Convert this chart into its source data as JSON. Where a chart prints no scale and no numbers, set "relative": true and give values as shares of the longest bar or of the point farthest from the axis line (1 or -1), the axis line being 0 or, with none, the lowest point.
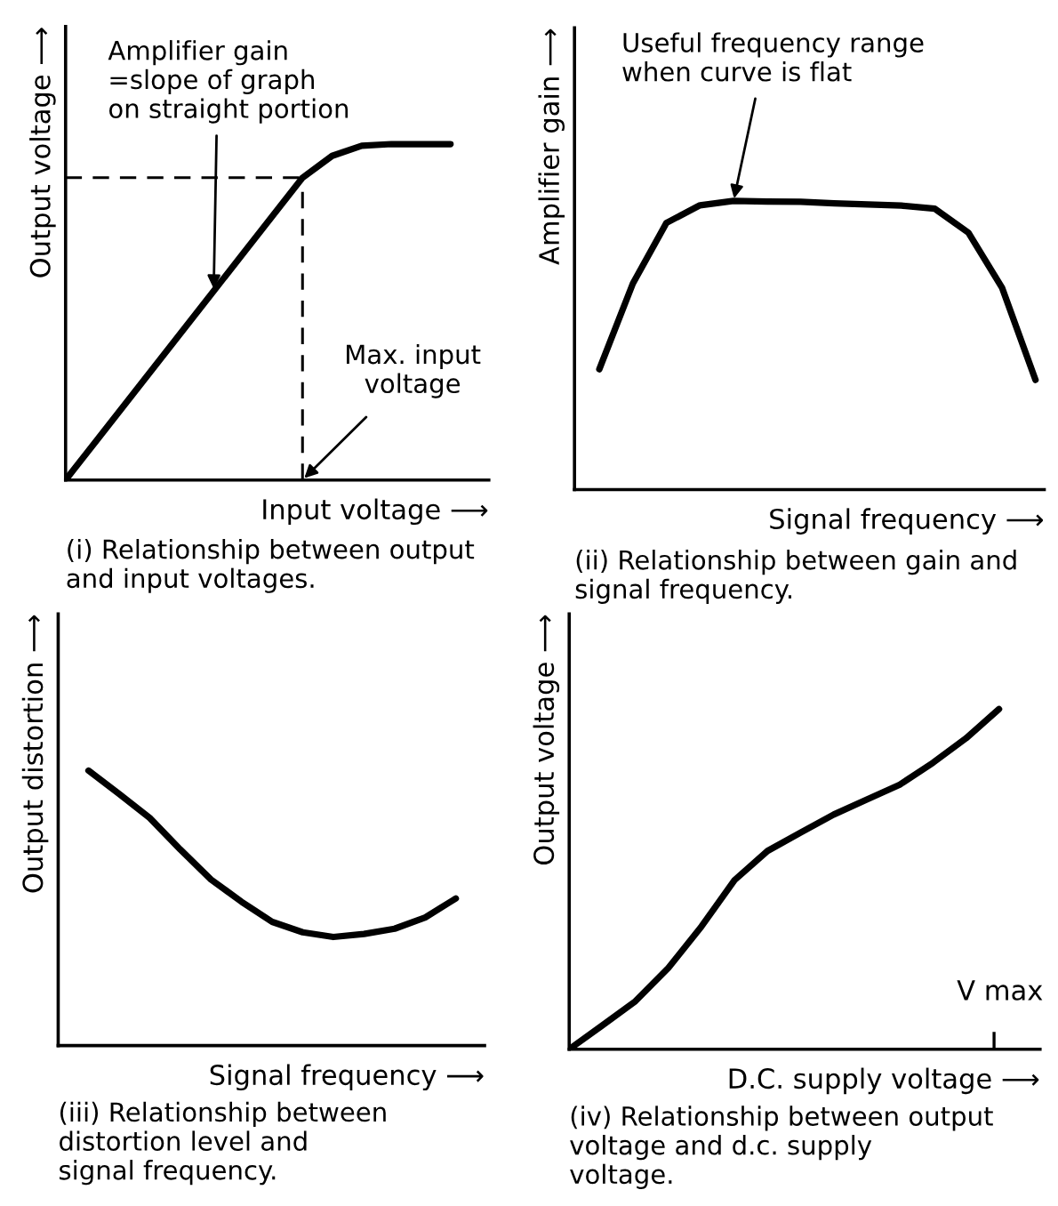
{
  "chart_data": [
    {
      "type": "line",
      "relative": true,
      "title": "(i) Relationship between output\nand input voltages.",
      "xlabel": "Input voltage ⟶",
      "ylabel": "Output voltage ⟶",
      "marker": "none",
      "line_style": "solid",
      "categories": [
        null,
        null,
        null,
        null,
        null,
        null,
        null,
        null,
        null,
        null,
        null,
        null,
        null,
        null
      ],
      "series": [
        {
          "color": "#000000",
          "values": [
            0,
            0.1125,
            0.225,
            0.3375,
            0.45,
            0.5625,
            0.675,
            0.7875,
            0.9,
            0.965,
            0.995,
            1,
            1,
            1
          ]
        }
      ],
      "ref_lines": [
        {
          "axis": "y",
          "value": 0.9,
          "line_style": "dashed",
          "color": "#000000"
        }
      ],
      "annotations": [
        "Amplifier gain\n=slope of graph\non straight portion",
        "Max. input\nvoltage"
      ]
    },
    {
      "type": "line",
      "relative": true,
      "title": "(ii) Relationship between gain and\nsignal frequency.",
      "xlabel": "Signal frequency ⟶",
      "ylabel": "Amplifier gain ⟶",
      "marker": "none",
      "line_style": "solid",
      "categories": [
        null,
        null,
        null,
        null,
        null,
        null,
        null,
        null,
        null,
        null,
        null,
        null,
        null,
        null
      ],
      "series": [
        {
          "color": "#000000",
          "values": [
            0.417,
            0.714,
            0.924,
            0.985,
            1,
            0.998,
            0.997,
            0.992,
            0.988,
            0.984,
            0.973,
            0.89,
            0.7,
            0.38
          ]
        }
      ],
      "annotations": [
        "Useful frequency range\nwhen curve is flat"
      ]
    },
    {
      "type": "line",
      "relative": true,
      "title": "(iii) Relationship between\ndistortion level and\nsignal frequency.",
      "xlabel": "Signal frequency ⟶",
      "ylabel": "Output distortion ⟶",
      "marker": "none",
      "line_style": "solid",
      "categories": [
        null,
        null,
        null,
        null,
        null,
        null,
        null,
        null,
        null,
        null,
        null,
        null,
        null
      ],
      "series": [
        {
          "color": "#000000",
          "values": [
            1,
            0.915,
            0.828,
            0.713,
            0.604,
            0.523,
            0.45,
            0.412,
            0.395,
            0.406,
            0.425,
            0.466,
            0.535
          ]
        }
      ]
    },
    {
      "type": "line",
      "relative": true,
      "title": "(iv) Relationship between output\nvoltage and d.c. supply\nvoltage.",
      "xlabel": "D.C. supply voltage ⟶",
      "ylabel": "Output voltage ⟶",
      "marker": "none",
      "line_style": "solid",
      "categories": [
        null,
        null,
        null,
        null,
        null,
        null,
        null,
        null,
        null,
        null,
        null,
        null,
        null,
        null
      ],
      "series": [
        {
          "color": "#000000",
          "values": [
            0,
            0.07,
            0.141,
            0.239,
            0.361,
            0.497,
            0.583,
            0.637,
            0.69,
            0.734,
            0.778,
            0.842,
            0.914,
            1
          ]
        }
      ],
      "annotations": [
        "V max"
      ]
    }
  ]
}
